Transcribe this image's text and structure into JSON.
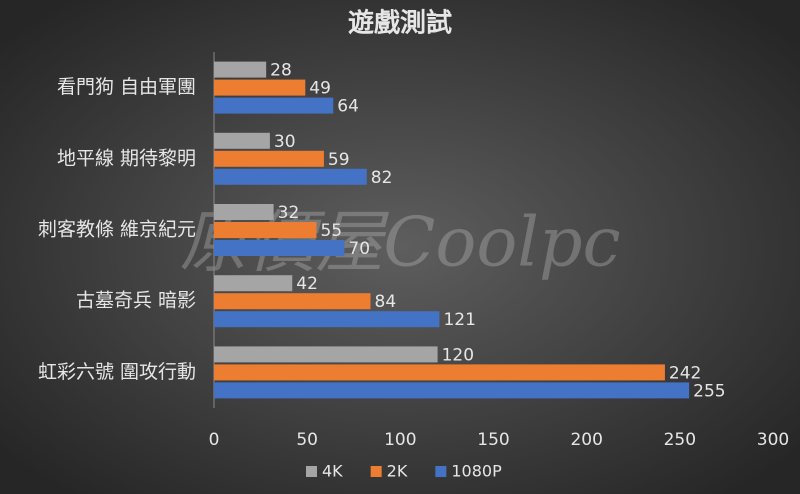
{
  "chart_data": {
    "type": "hbar",
    "title": "遊戲測試",
    "watermark": "原價屋Coolpc",
    "categories": [
      "看門狗 自由軍團",
      "地平線 期待黎明",
      "刺客教條 維京紀元",
      "古墓奇兵 暗影",
      "虹彩六號 圍攻行動"
    ],
    "series": [
      {
        "name": "4K",
        "color": "#a5a5a5",
        "values": [
          28,
          30,
          32,
          42,
          120
        ]
      },
      {
        "name": "2K",
        "color": "#ed7d31",
        "values": [
          49,
          59,
          55,
          84,
          242
        ]
      },
      {
        "name": "1080P",
        "color": "#4472c4",
        "values": [
          64,
          82,
          70,
          121,
          255
        ]
      }
    ],
    "xlim": [
      0,
      300
    ],
    "xticks": [
      0,
      50,
      100,
      150,
      200,
      250,
      300
    ],
    "legend": "bottom"
  }
}
